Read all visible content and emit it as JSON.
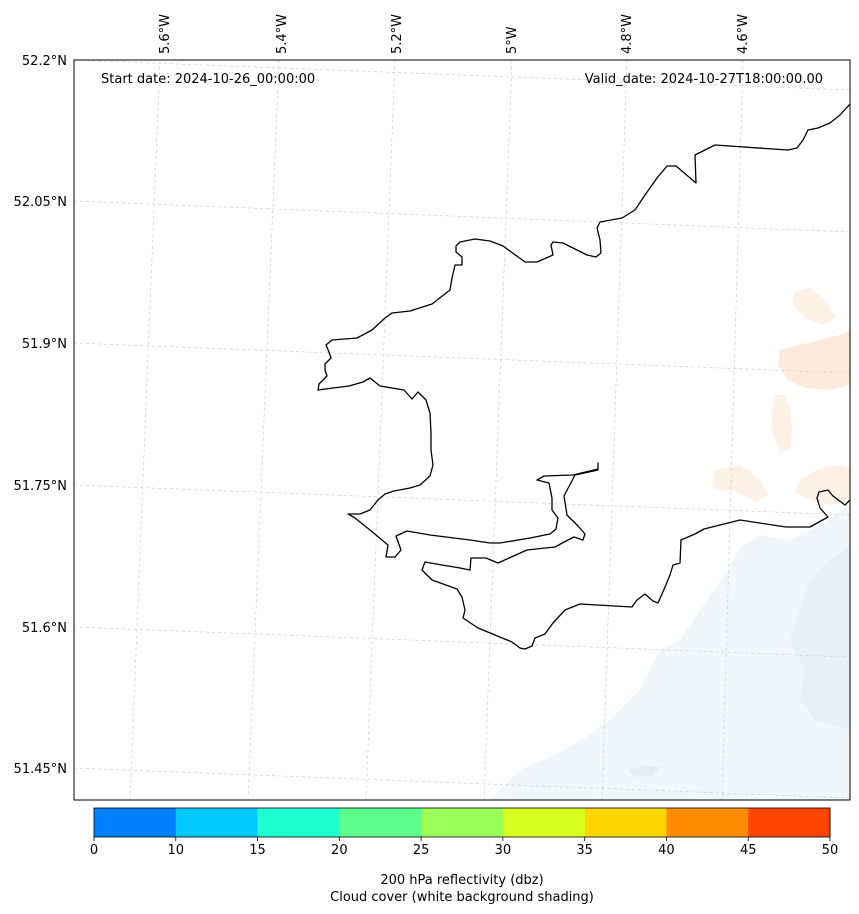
{
  "map": {
    "start_date": "Start date: 2024-10-26_00:00:00",
    "valid_date": "Valid_date: 2024-10-27T18:00:00.00",
    "lon_labels": [
      "5.6°W",
      "5.4°W",
      "5.2°W",
      "5°W",
      "4.8°W",
      "4.6°W"
    ],
    "lat_labels": [
      "52.2°N",
      "52.05°N",
      "51.9°N",
      "51.75°N",
      "51.6°N",
      "51.45°N"
    ],
    "gridlines": "dashed"
  },
  "colorbar": {
    "ticks": [
      "0",
      "10",
      "15",
      "20",
      "25",
      "30",
      "35",
      "40",
      "45",
      "50"
    ],
    "colors": [
      "#0080ff",
      "#00c8ff",
      "#1effd0",
      "#5cff8c",
      "#9aff58",
      "#d8ff20",
      "#ffd700",
      "#ff8c00",
      "#ff4500"
    ],
    "label_line1": "200 hPa reflectivity (dbz)",
    "label_line2": "Cloud cover (white background shading)"
  }
}
